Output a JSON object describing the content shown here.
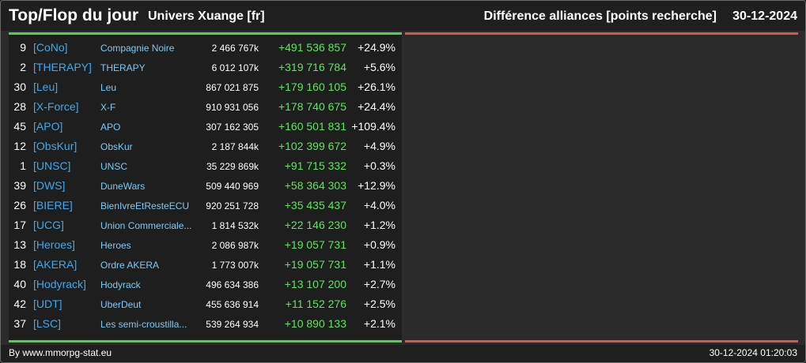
{
  "header": {
    "title": "Top/Flop du jour",
    "subtitle": "Univers Xuange [fr]",
    "right_title": "Différence alliances [points recherche]",
    "date": "30-12-2024"
  },
  "colors": {
    "tag": "#3ea9ec",
    "name": "#7ec9f5",
    "gain": "#5ce65c",
    "top_bar": "#4fd34f",
    "flop_bar": "#d9534f"
  },
  "top": {
    "rows": [
      {
        "rank": "9",
        "tag": "[CoNo]",
        "name": "Compagnie Noire",
        "points": "2 466 767k",
        "diff": "+491 536 857",
        "pct": "+24.9%"
      },
      {
        "rank": "2",
        "tag": "[THERAPY]",
        "name": "THERAPY",
        "points": "6 012 107k",
        "diff": "+319 716 784",
        "pct": "+5.6%"
      },
      {
        "rank": "30",
        "tag": "[Leu]",
        "name": "Leu",
        "points": "867 021 875",
        "diff": "+179 160 105",
        "pct": "+26.1%"
      },
      {
        "rank": "28",
        "tag": "[X-Force]",
        "name": "X-F",
        "points": "910 931 056",
        "diff": "+178 740 675",
        "pct": "+24.4%"
      },
      {
        "rank": "45",
        "tag": "[APO]",
        "name": "APO",
        "points": "307 162 305",
        "diff": "+160 501 831",
        "pct": "+109.4%"
      },
      {
        "rank": "12",
        "tag": "[ObsKur]",
        "name": "ObsKur",
        "points": "2 187 844k",
        "diff": "+102 399 672",
        "pct": "+4.9%"
      },
      {
        "rank": "1",
        "tag": "[UNSC]",
        "name": "UNSC",
        "points": "35 229 869k",
        "diff": "+91 715 332",
        "pct": "+0.3%"
      },
      {
        "rank": "39",
        "tag": "[DWS]",
        "name": "DuneWars",
        "points": "509 440 969",
        "diff": "+58 364 303",
        "pct": "+12.9%"
      },
      {
        "rank": "26",
        "tag": "[BIERE]",
        "name": "BienIvreEtResteECU",
        "points": "920 251 728",
        "diff": "+35 435 437",
        "pct": "+4.0%"
      },
      {
        "rank": "17",
        "tag": "[UCG]",
        "name": "Union Commerciale...",
        "points": "1 814 532k",
        "diff": "+22 146 230",
        "pct": "+1.2%"
      },
      {
        "rank": "13",
        "tag": "[Heroes]",
        "name": "Heroes",
        "points": "2 086 987k",
        "diff": "+19 057 731",
        "pct": "+0.9%"
      },
      {
        "rank": "18",
        "tag": "[AKERA]",
        "name": "Ordre AKERA",
        "points": "1 773 007k",
        "diff": "+19 057 731",
        "pct": "+1.1%"
      },
      {
        "rank": "40",
        "tag": "[Hodyrack]",
        "name": "Hodyrack",
        "points": "496 634 386",
        "diff": "+13 107 200",
        "pct": "+2.7%"
      },
      {
        "rank": "42",
        "tag": "[UDT]",
        "name": "UberDeut",
        "points": "455 636 914",
        "diff": "+11 152 276",
        "pct": "+2.5%"
      },
      {
        "rank": "37",
        "tag": "[LSC]",
        "name": "Les semi-croustilla...",
        "points": "539 264 934",
        "diff": "+10 890 133",
        "pct": "+2.1%"
      }
    ]
  },
  "flop": {
    "rows": []
  },
  "footer": {
    "credit": "By www.mmorpg-stat.eu",
    "timestamp": "30-12-2024 01:20:03"
  }
}
